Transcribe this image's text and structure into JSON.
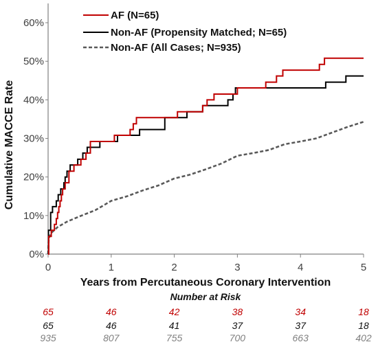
{
  "chart_data": {
    "type": "line",
    "subtype": "kaplan-meier-step",
    "xlabel": "Years from Percutaneous Coronary Intervention",
    "ylabel": "Cumulative MACCE Rate",
    "xlim": [
      0,
      5
    ],
    "ylim": [
      0,
      65
    ],
    "x_ticks": [
      "0",
      "1",
      "2",
      "3",
      "4",
      "5"
    ],
    "y_ticks": [
      "0%",
      "10%",
      "20%",
      "30%",
      "40%",
      "50%",
      "60%"
    ],
    "grid": false,
    "legend_position": "top-right",
    "series": [
      {
        "name": "AF (N=65)",
        "color": "#c00000",
        "style": "solid",
        "points": [
          [
            0,
            0
          ],
          [
            0.01,
            4.6
          ],
          [
            0.05,
            6.2
          ],
          [
            0.1,
            7.7
          ],
          [
            0.13,
            9.2
          ],
          [
            0.15,
            10.8
          ],
          [
            0.17,
            12.3
          ],
          [
            0.19,
            13.8
          ],
          [
            0.21,
            15.4
          ],
          [
            0.23,
            16.9
          ],
          [
            0.27,
            18.5
          ],
          [
            0.33,
            21.5
          ],
          [
            0.41,
            23.1
          ],
          [
            0.52,
            24.6
          ],
          [
            0.6,
            26.2
          ],
          [
            0.67,
            29.2
          ],
          [
            1.05,
            30.8
          ],
          [
            1.3,
            32.3
          ],
          [
            1.35,
            33.8
          ],
          [
            1.4,
            35.4
          ],
          [
            2.05,
            36.9
          ],
          [
            2.45,
            38.5
          ],
          [
            2.52,
            40.0
          ],
          [
            2.63,
            41.5
          ],
          [
            3.0,
            43.1
          ],
          [
            3.45,
            44.6
          ],
          [
            3.62,
            46.2
          ],
          [
            3.72,
            47.7
          ],
          [
            4.3,
            49.2
          ],
          [
            4.38,
            50.8
          ],
          [
            5.0,
            50.8
          ]
        ]
      },
      {
        "name": "Non-AF (Propensity Matched; N=65)",
        "color": "#000000",
        "style": "solid",
        "points": [
          [
            0,
            0
          ],
          [
            0.005,
            6.2
          ],
          [
            0.04,
            10.8
          ],
          [
            0.07,
            12.3
          ],
          [
            0.13,
            13.8
          ],
          [
            0.16,
            15.4
          ],
          [
            0.2,
            16.9
          ],
          [
            0.25,
            18.5
          ],
          [
            0.27,
            20.0
          ],
          [
            0.3,
            21.5
          ],
          [
            0.35,
            23.1
          ],
          [
            0.47,
            24.6
          ],
          [
            0.55,
            26.2
          ],
          [
            0.62,
            27.7
          ],
          [
            0.82,
            29.2
          ],
          [
            1.1,
            30.8
          ],
          [
            1.45,
            32.3
          ],
          [
            1.85,
            35.4
          ],
          [
            2.2,
            36.9
          ],
          [
            2.45,
            38.5
          ],
          [
            2.85,
            40.0
          ],
          [
            2.93,
            41.5
          ],
          [
            2.97,
            43.1
          ],
          [
            4.4,
            44.6
          ],
          [
            4.72,
            46.2
          ],
          [
            5.0,
            46.2
          ]
        ]
      },
      {
        "name": "Non-AF (All Cases; N=935)",
        "color": "#595959",
        "style": "dashed",
        "points": [
          [
            0,
            0
          ],
          [
            0.01,
            4.0
          ],
          [
            0.05,
            5.5
          ],
          [
            0.15,
            7.0
          ],
          [
            0.3,
            8.4
          ],
          [
            0.5,
            9.8
          ],
          [
            0.75,
            11.4
          ],
          [
            1.0,
            13.8
          ],
          [
            1.25,
            15.0
          ],
          [
            1.5,
            16.5
          ],
          [
            1.75,
            17.8
          ],
          [
            2.0,
            19.6
          ],
          [
            2.25,
            20.6
          ],
          [
            2.5,
            22.0
          ],
          [
            2.75,
            23.5
          ],
          [
            3.0,
            25.5
          ],
          [
            3.25,
            26.2
          ],
          [
            3.5,
            27.0
          ],
          [
            3.75,
            28.5
          ],
          [
            4.0,
            29.2
          ],
          [
            4.25,
            30.0
          ],
          [
            4.5,
            31.5
          ],
          [
            4.75,
            33.0
          ],
          [
            5.0,
            34.3
          ]
        ]
      }
    ],
    "number_at_risk": {
      "title": "Number at Risk",
      "rows": [
        {
          "color": "#c00000",
          "values": [
            "65",
            "46",
            "42",
            "38",
            "34",
            "18"
          ]
        },
        {
          "color": "#111111",
          "values": [
            "65",
            "46",
            "41",
            "37",
            "37",
            "18"
          ]
        },
        {
          "color": "#7f7f7f",
          "values": [
            "935",
            "807",
            "755",
            "700",
            "663",
            "402"
          ]
        }
      ]
    }
  }
}
